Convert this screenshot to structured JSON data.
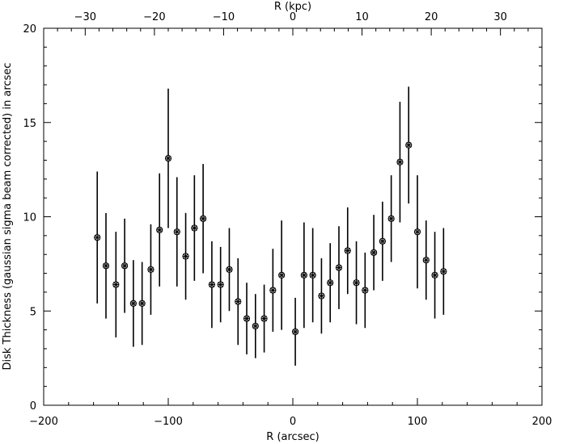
{
  "chart_data": {
    "type": "scatter",
    "xlabel": "R (arcsec)",
    "x2label": "R (kpc)",
    "ylabel": "Disk Thickness (gaussian sigma beam corrected) in arcsec",
    "xlim": [
      -200,
      200
    ],
    "ylim": [
      0,
      20
    ],
    "x_ticks": [
      "−200",
      "−100",
      "0",
      "100",
      "200"
    ],
    "x_tick_values": [
      -200,
      -100,
      0,
      100,
      200
    ],
    "x2_ticks": [
      "−30",
      "−20",
      "−10",
      "0",
      "10",
      "20",
      "30"
    ],
    "x2_tick_values": [
      -30,
      -20,
      -10,
      0,
      10,
      20,
      30
    ],
    "x2_range_kpc": [
      -36.0,
      36.0
    ],
    "y_ticks": [
      "0",
      "5",
      "10",
      "15",
      "20"
    ],
    "y_tick_values": [
      0,
      5,
      10,
      15,
      20
    ],
    "grid": false,
    "legend": "none",
    "marker": "asterisk-circle",
    "series": [
      {
        "points": [
          {
            "x": -157,
            "y": 8.9,
            "err": 3.5
          },
          {
            "x": -150,
            "y": 7.4,
            "err": 2.8
          },
          {
            "x": -142,
            "y": 6.4,
            "err": 2.8
          },
          {
            "x": -135,
            "y": 7.4,
            "err": 2.5
          },
          {
            "x": -128,
            "y": 5.4,
            "err": 2.3
          },
          {
            "x": -121,
            "y": 5.4,
            "err": 2.2
          },
          {
            "x": -114,
            "y": 7.2,
            "err": 2.4
          },
          {
            "x": -107,
            "y": 9.3,
            "err": 3.0
          },
          {
            "x": -100,
            "y": 13.1,
            "err": 3.7
          },
          {
            "x": -93,
            "y": 9.2,
            "err": 2.9
          },
          {
            "x": -86,
            "y": 7.9,
            "err": 2.3
          },
          {
            "x": -79,
            "y": 9.4,
            "err": 2.8
          },
          {
            "x": -72,
            "y": 9.9,
            "err": 2.9
          },
          {
            "x": -65,
            "y": 6.4,
            "err": 2.3
          },
          {
            "x": -58,
            "y": 6.4,
            "err": 2.0
          },
          {
            "x": -51,
            "y": 7.2,
            "err": 2.2
          },
          {
            "x": -44,
            "y": 5.5,
            "err": 2.3
          },
          {
            "x": -37,
            "y": 4.6,
            "err": 1.9
          },
          {
            "x": -30,
            "y": 4.2,
            "err": 1.7
          },
          {
            "x": -23,
            "y": 4.6,
            "err": 1.8
          },
          {
            "x": -16,
            "y": 6.1,
            "err": 2.2
          },
          {
            "x": -9,
            "y": 6.9,
            "err": 2.9
          },
          {
            "x": 2,
            "y": 3.9,
            "err": 1.8
          },
          {
            "x": 9,
            "y": 6.9,
            "err": 2.8
          },
          {
            "x": 16,
            "y": 6.9,
            "err": 2.5
          },
          {
            "x": 23,
            "y": 5.8,
            "err": 2.0
          },
          {
            "x": 30,
            "y": 6.5,
            "err": 2.1
          },
          {
            "x": 37,
            "y": 7.3,
            "err": 2.2
          },
          {
            "x": 44,
            "y": 8.2,
            "err": 2.3
          },
          {
            "x": 51,
            "y": 6.5,
            "err": 2.2
          },
          {
            "x": 58,
            "y": 6.1,
            "err": 2.0
          },
          {
            "x": 65,
            "y": 8.1,
            "err": 2.0
          },
          {
            "x": 72,
            "y": 8.7,
            "err": 2.1
          },
          {
            "x": 79,
            "y": 9.9,
            "err": 2.3
          },
          {
            "x": 86,
            "y": 12.9,
            "err": 3.2
          },
          {
            "x": 93,
            "y": 13.8,
            "err": 3.1
          },
          {
            "x": 100,
            "y": 9.2,
            "err": 3.0
          },
          {
            "x": 107,
            "y": 7.7,
            "err": 2.1
          },
          {
            "x": 114,
            "y": 6.9,
            "err": 2.3
          },
          {
            "x": 121,
            "y": 7.1,
            "err": 2.3
          }
        ]
      }
    ]
  }
}
